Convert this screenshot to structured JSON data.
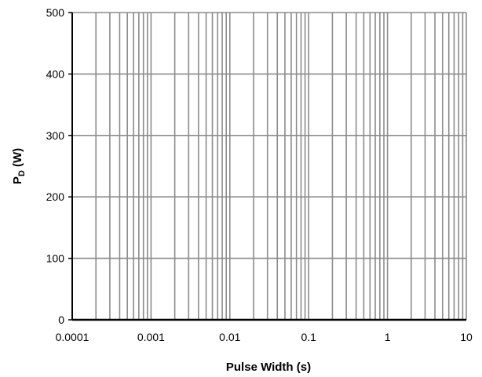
{
  "chart_data": {
    "type": "line",
    "title": "",
    "xlabel": "Pulse Width (s)",
    "ylabel_main": "P",
    "ylabel_sub": "D",
    "ylabel_unit": " (W)",
    "x_scale": "log",
    "xlim": [
      0.0001,
      10
    ],
    "ylim": [
      0,
      500
    ],
    "x_ticks": [
      0.0001,
      0.001,
      0.01,
      0.1,
      1,
      10
    ],
    "x_tick_labels": [
      "0.0001",
      "0.001",
      "0.01",
      "0.1",
      "1",
      "10"
    ],
    "y_ticks": [
      0,
      100,
      200,
      300,
      400,
      500
    ],
    "y_tick_labels": [
      "0",
      "100",
      "200",
      "300",
      "400",
      "500"
    ],
    "grid": true,
    "series": []
  },
  "colors": {
    "grid": "#8c8c8c",
    "axis": "#000000",
    "background": "#ffffff"
  }
}
